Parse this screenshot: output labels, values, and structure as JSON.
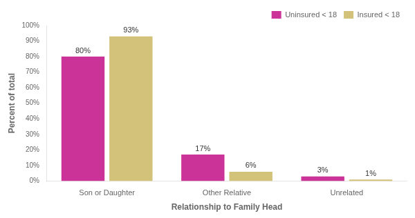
{
  "chart_data": {
    "type": "bar",
    "categories": [
      "Son or Daughter",
      "Other Relative",
      "Unrelated"
    ],
    "series": [
      {
        "name": "Uninsured < 18",
        "color": "#CC3399",
        "values": [
          80,
          17,
          3
        ],
        "value_labels": [
          "80%",
          "17%",
          "3%"
        ]
      },
      {
        "name": "Insured < 18",
        "color": "#D2C27A",
        "values": [
          93,
          6,
          1
        ],
        "value_labels": [
          "93%",
          "6%",
          "1%"
        ]
      }
    ],
    "xlabel": "Relationship to Family Head",
    "ylabel": "Percent of total",
    "ylim": [
      0,
      100
    ],
    "yticks": [
      {
        "value": 0,
        "label": "0%"
      },
      {
        "value": 10,
        "label": "10%"
      },
      {
        "value": 20,
        "label": "20%"
      },
      {
        "value": 30,
        "label": "30%"
      },
      {
        "value": 40,
        "label": "40%"
      },
      {
        "value": 50,
        "label": "50%"
      },
      {
        "value": 60,
        "label": "60%"
      },
      {
        "value": 70,
        "label": "70%"
      },
      {
        "value": 80,
        "label": "80%"
      },
      {
        "value": 90,
        "label": "90%"
      },
      {
        "value": 100,
        "label": "100%"
      }
    ],
    "grid": false,
    "legend": "upper right",
    "data_labels": true
  }
}
